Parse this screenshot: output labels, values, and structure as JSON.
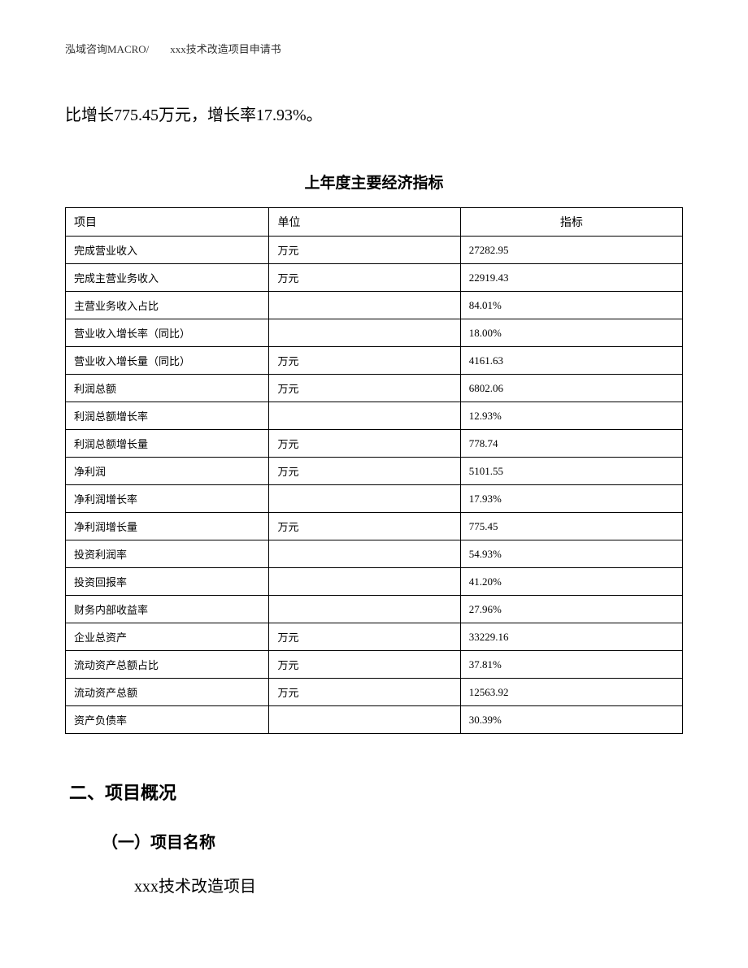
{
  "header": "泓域咨询MACRO/　　xxx技术改造项目申请书",
  "intro_text": "比增长775.45万元，增长率17.93%。",
  "table": {
    "title": "上年度主要经济指标",
    "columns": [
      "项目",
      "单位",
      "指标"
    ],
    "rows": [
      [
        "完成营业收入",
        "万元",
        "27282.95"
      ],
      [
        "完成主营业务收入",
        "万元",
        "22919.43"
      ],
      [
        "主营业务收入占比",
        "",
        "84.01%"
      ],
      [
        "营业收入增长率（同比）",
        "",
        "18.00%"
      ],
      [
        "营业收入增长量（同比）",
        "万元",
        "4161.63"
      ],
      [
        "利润总额",
        "万元",
        "6802.06"
      ],
      [
        "利润总额增长率",
        "",
        "12.93%"
      ],
      [
        "利润总额增长量",
        "万元",
        "778.74"
      ],
      [
        "净利润",
        "万元",
        "5101.55"
      ],
      [
        "净利润增长率",
        "",
        "17.93%"
      ],
      [
        "净利润增长量",
        "万元",
        "775.45"
      ],
      [
        "投资利润率",
        "",
        "54.93%"
      ],
      [
        "投资回报率",
        "",
        "41.20%"
      ],
      [
        "财务内部收益率",
        "",
        "27.96%"
      ],
      [
        "企业总资产",
        "万元",
        "33229.16"
      ],
      [
        "流动资产总额占比",
        "万元",
        "37.81%"
      ],
      [
        "流动资产总额",
        "万元",
        "12563.92"
      ],
      [
        "资产负债率",
        "",
        "30.39%"
      ]
    ]
  },
  "section_heading": "二、项目概况",
  "sub_heading": "（一）项目名称",
  "body_text": "xxx技术改造项目"
}
